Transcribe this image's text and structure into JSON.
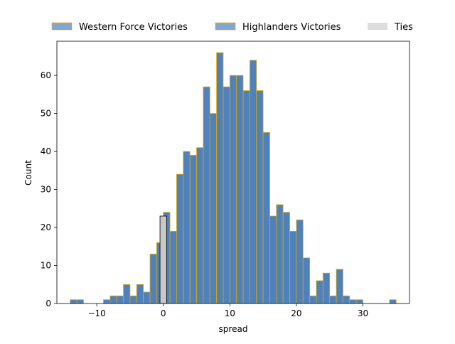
{
  "chart_data": {
    "type": "bar",
    "title": "",
    "xlabel": "spread",
    "ylabel": "Count",
    "xlim": [
      -16,
      37
    ],
    "ylim": [
      0,
      69
    ],
    "xticks": [
      -10,
      0,
      10,
      20,
      30
    ],
    "yticks": [
      0,
      10,
      20,
      30,
      40,
      50,
      60
    ],
    "grid": false,
    "legend_position": "top",
    "bin_width": 1,
    "series": [
      {
        "name": "Western Force Victories",
        "color": "#4f81bd",
        "edgecolor": "#e0a800",
        "bins": [
          {
            "x": -14,
            "count": 1
          },
          {
            "x": -13,
            "count": 1
          },
          {
            "x": -12,
            "count": 0
          },
          {
            "x": -11,
            "count": 0
          },
          {
            "x": -10,
            "count": 0
          },
          {
            "x": -9,
            "count": 1
          },
          {
            "x": -8,
            "count": 2
          },
          {
            "x": -7,
            "count": 2
          },
          {
            "x": -6,
            "count": 5
          },
          {
            "x": -5,
            "count": 2
          },
          {
            "x": -4,
            "count": 5
          },
          {
            "x": -3,
            "count": 3
          },
          {
            "x": -2,
            "count": 13
          },
          {
            "x": -1,
            "count": 16
          }
        ]
      },
      {
        "name": "Highlanders Victories",
        "color": "#4f81bd",
        "edgecolor": "#e0a800",
        "bins": [
          {
            "x": 0,
            "count": 24
          },
          {
            "x": 1,
            "count": 19
          },
          {
            "x": 2,
            "count": 34
          },
          {
            "x": 3,
            "count": 40
          },
          {
            "x": 4,
            "count": 39
          },
          {
            "x": 5,
            "count": 41
          },
          {
            "x": 6,
            "count": 57
          },
          {
            "x": 7,
            "count": 50
          },
          {
            "x": 8,
            "count": 66
          },
          {
            "x": 9,
            "count": 57
          },
          {
            "x": 10,
            "count": 60
          },
          {
            "x": 11,
            "count": 60
          },
          {
            "x": 12,
            "count": 56
          },
          {
            "x": 13,
            "count": 64
          },
          {
            "x": 14,
            "count": 56
          },
          {
            "x": 15,
            "count": 45
          },
          {
            "x": 16,
            "count": 23
          },
          {
            "x": 17,
            "count": 26
          },
          {
            "x": 18,
            "count": 24
          },
          {
            "x": 19,
            "count": 19
          },
          {
            "x": 20,
            "count": 22
          },
          {
            "x": 21,
            "count": 12
          },
          {
            "x": 22,
            "count": 2
          },
          {
            "x": 23,
            "count": 6
          },
          {
            "x": 24,
            "count": 8
          },
          {
            "x": 25,
            "count": 2
          },
          {
            "x": 26,
            "count": 9
          },
          {
            "x": 27,
            "count": 2
          },
          {
            "x": 28,
            "count": 1
          },
          {
            "x": 29,
            "count": 1
          },
          {
            "x": 30,
            "count": 0
          },
          {
            "x": 31,
            "count": 0
          },
          {
            "x": 32,
            "count": 0
          },
          {
            "x": 33,
            "count": 0
          },
          {
            "x": 34,
            "count": 1
          }
        ]
      },
      {
        "name": "Ties",
        "color": "#c8c8c8",
        "legend_color": "#dddddd",
        "edgecolor": "#000000",
        "bins": [
          {
            "x": -0.5,
            "count": 23
          }
        ]
      }
    ]
  }
}
